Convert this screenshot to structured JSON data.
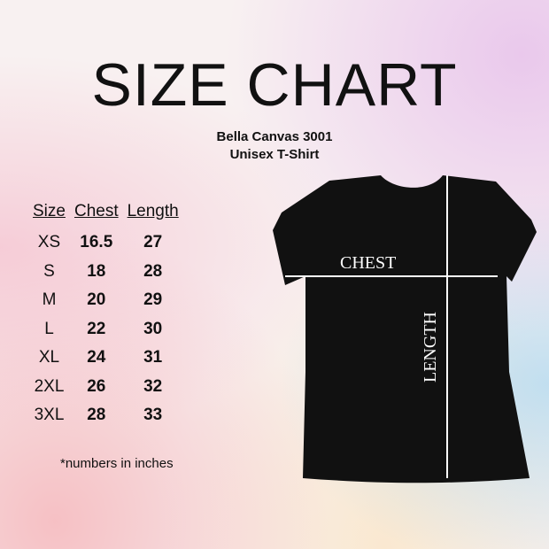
{
  "title": "SIZE CHART",
  "subtitle": "Bella Canvas 3001",
  "subtitle2": "Unisex T-Shirt",
  "table": {
    "headers": [
      "Size",
      "Chest",
      "Length"
    ],
    "rows": [
      [
        "XS",
        "16.5",
        "27"
      ],
      [
        "S",
        "18",
        "28"
      ],
      [
        "M",
        "20",
        "29"
      ],
      [
        "L",
        "22",
        "30"
      ],
      [
        "XL",
        "24",
        "31"
      ],
      [
        "2XL",
        "26",
        "32"
      ],
      [
        "3XL",
        "28",
        "33"
      ]
    ]
  },
  "note": "*numbers in inches",
  "shirt": {
    "chest_label": "CHEST",
    "length_label": "LENGTH",
    "color": "#111111"
  }
}
